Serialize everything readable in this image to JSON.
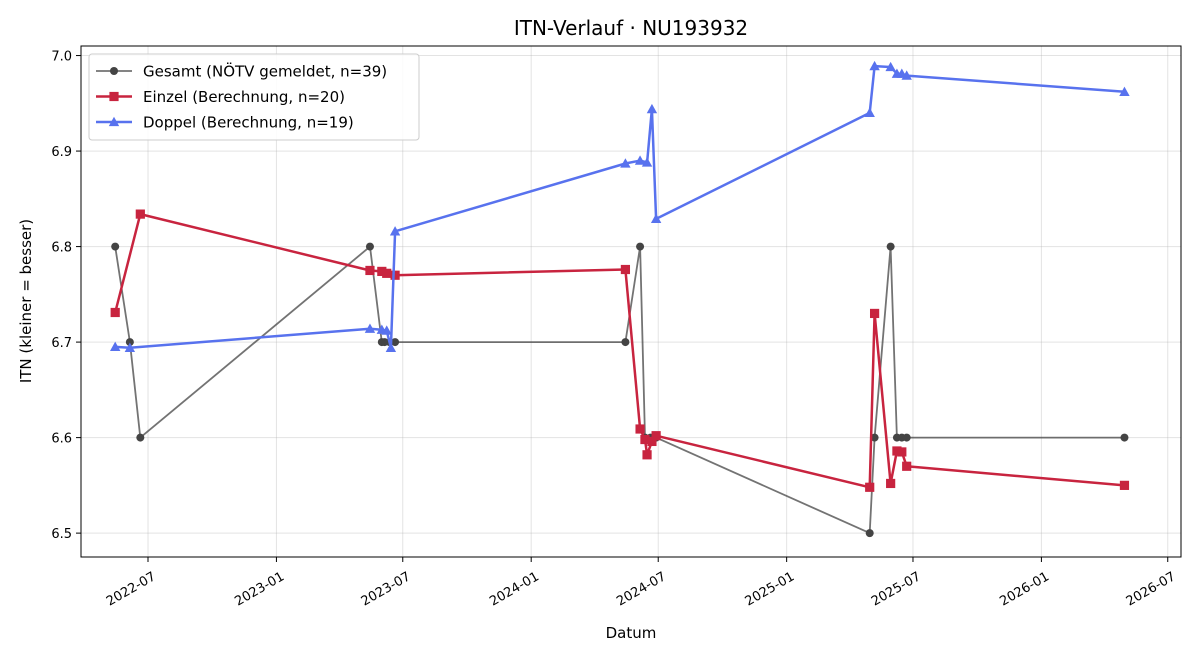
{
  "chart_data": {
    "type": "line",
    "title": "ITN-Verlauf · NU193932",
    "xlabel": "Datum",
    "ylabel": "ITN  (kleiner = besser)",
    "xlim": [
      "2022-03-27",
      "2026-07-20"
    ],
    "ylim": [
      6.475,
      7.01
    ],
    "x_ticks": [
      "2022-07-01",
      "2023-01-01",
      "2023-07-01",
      "2024-01-01",
      "2024-07-01",
      "2025-01-01",
      "2025-07-01",
      "2026-01-01",
      "2026-07-01"
    ],
    "x_tick_labels": [
      "2022-07",
      "2023-01",
      "2023-07",
      "2024-01",
      "2024-07",
      "2025-01",
      "2025-07",
      "2026-01",
      "2026-07"
    ],
    "y_ticks": [
      6.5,
      6.6,
      6.7,
      6.8,
      6.9,
      7.0
    ],
    "y_tick_labels": [
      "6.5",
      "6.6",
      "6.7",
      "6.8",
      "6.9",
      "7.0"
    ],
    "grid": true,
    "legend_position": "top-left",
    "series": [
      {
        "name": "Gesamt (NÖTV gemeldet, n=39)",
        "color": "#444444",
        "marker": "circle",
        "points": [
          {
            "x": "2022-05-15",
            "y": 6.8
          },
          {
            "x": "2022-06-05",
            "y": 6.7
          },
          {
            "x": "2022-06-20",
            "y": 6.6
          },
          {
            "x": "2023-05-15",
            "y": 6.8
          },
          {
            "x": "2023-06-01",
            "y": 6.7
          },
          {
            "x": "2023-06-05",
            "y": 6.7
          },
          {
            "x": "2023-06-12",
            "y": 6.7
          },
          {
            "x": "2023-06-20",
            "y": 6.7
          },
          {
            "x": "2024-05-15",
            "y": 6.7
          },
          {
            "x": "2024-06-05",
            "y": 6.8
          },
          {
            "x": "2024-06-12",
            "y": 6.6
          },
          {
            "x": "2024-06-20",
            "y": 6.6
          },
          {
            "x": "2024-06-28",
            "y": 6.6
          },
          {
            "x": "2025-04-30",
            "y": 6.5
          },
          {
            "x": "2025-05-07",
            "y": 6.6
          },
          {
            "x": "2025-05-30",
            "y": 6.8
          },
          {
            "x": "2025-06-08",
            "y": 6.6
          },
          {
            "x": "2025-06-15",
            "y": 6.6
          },
          {
            "x": "2025-06-22",
            "y": 6.6
          },
          {
            "x": "2026-04-30",
            "y": 6.6
          }
        ]
      },
      {
        "name": "Einzel (Berechnung, n=20)",
        "color": "#c8243f",
        "marker": "square",
        "points": [
          {
            "x": "2022-05-15",
            "y": 6.731
          },
          {
            "x": "2022-06-20",
            "y": 6.834
          },
          {
            "x": "2023-05-15",
            "y": 6.775
          },
          {
            "x": "2023-06-01",
            "y": 6.774
          },
          {
            "x": "2023-06-08",
            "y": 6.772
          },
          {
            "x": "2023-06-20",
            "y": 6.77
          },
          {
            "x": "2024-05-15",
            "y": 6.776
          },
          {
            "x": "2024-06-05",
            "y": 6.609
          },
          {
            "x": "2024-06-12",
            "y": 6.598
          },
          {
            "x": "2024-06-15",
            "y": 6.582
          },
          {
            "x": "2024-06-22",
            "y": 6.596
          },
          {
            "x": "2024-06-28",
            "y": 6.602
          },
          {
            "x": "2025-04-30",
            "y": 6.548
          },
          {
            "x": "2025-05-07",
            "y": 6.73
          },
          {
            "x": "2025-05-30",
            "y": 6.552
          },
          {
            "x": "2025-06-08",
            "y": 6.586
          },
          {
            "x": "2025-06-15",
            "y": 6.585
          },
          {
            "x": "2025-06-22",
            "y": 6.57
          },
          {
            "x": "2026-04-30",
            "y": 6.55
          }
        ]
      },
      {
        "name": "Doppel (Berechnung, n=19)",
        "color": "#5872ee",
        "marker": "triangle",
        "points": [
          {
            "x": "2022-05-15",
            "y": 6.695
          },
          {
            "x": "2022-06-05",
            "y": 6.694
          },
          {
            "x": "2023-05-15",
            "y": 6.714
          },
          {
            "x": "2023-06-01",
            "y": 6.713
          },
          {
            "x": "2023-06-08",
            "y": 6.712
          },
          {
            "x": "2023-06-14",
            "y": 6.694
          },
          {
            "x": "2023-06-20",
            "y": 6.816
          },
          {
            "x": "2024-05-15",
            "y": 6.887
          },
          {
            "x": "2024-06-05",
            "y": 6.89
          },
          {
            "x": "2024-06-15",
            "y": 6.888
          },
          {
            "x": "2024-06-22",
            "y": 6.944
          },
          {
            "x": "2024-06-28",
            "y": 6.829
          },
          {
            "x": "2025-04-30",
            "y": 6.94
          },
          {
            "x": "2025-05-07",
            "y": 6.989
          },
          {
            "x": "2025-05-30",
            "y": 6.988
          },
          {
            "x": "2025-06-08",
            "y": 6.981
          },
          {
            "x": "2025-06-15",
            "y": 6.981
          },
          {
            "x": "2025-06-22",
            "y": 6.979
          },
          {
            "x": "2026-04-30",
            "y": 6.962
          }
        ]
      }
    ]
  }
}
